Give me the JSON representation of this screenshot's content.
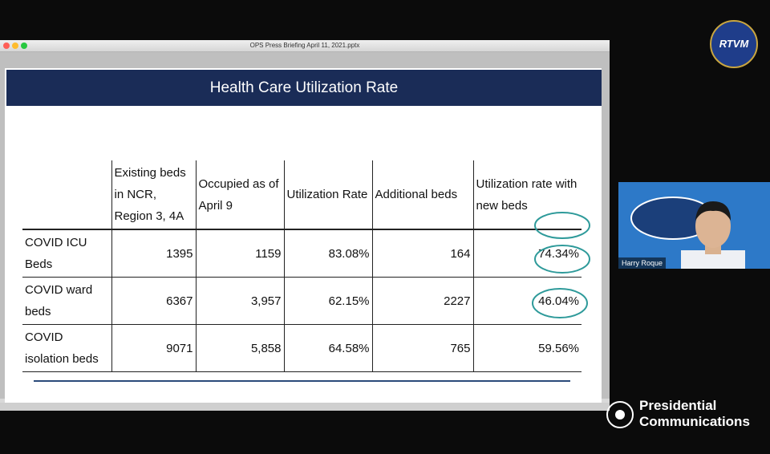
{
  "window": {
    "title": "OPS Press Briefing April 11, 2021.pptx"
  },
  "slide": {
    "title": "Health Care Utilization Rate",
    "table": {
      "header": [
        "",
        "Existing beds in NCR, Region 3, 4A",
        "Occupied as of April 9",
        "Utilization Rate",
        "Additional beds",
        "Utilization rate with new beds"
      ],
      "rows": [
        [
          "COVID ICU Beds",
          "1395",
          "1159",
          "83.08%",
          "164",
          "74.34%"
        ],
        [
          "COVID ward beds",
          "6367",
          "3,957",
          "62.15%",
          "2227",
          "46.04%"
        ],
        [
          "COVID isolation beds",
          "9071",
          "5,858",
          "64.58%",
          "765",
          "59.56%"
        ]
      ]
    }
  },
  "participant": {
    "name": "Harry Roque"
  },
  "branding": {
    "badge": "RTVM",
    "line1": "Presidential",
    "line2": "Communications"
  }
}
